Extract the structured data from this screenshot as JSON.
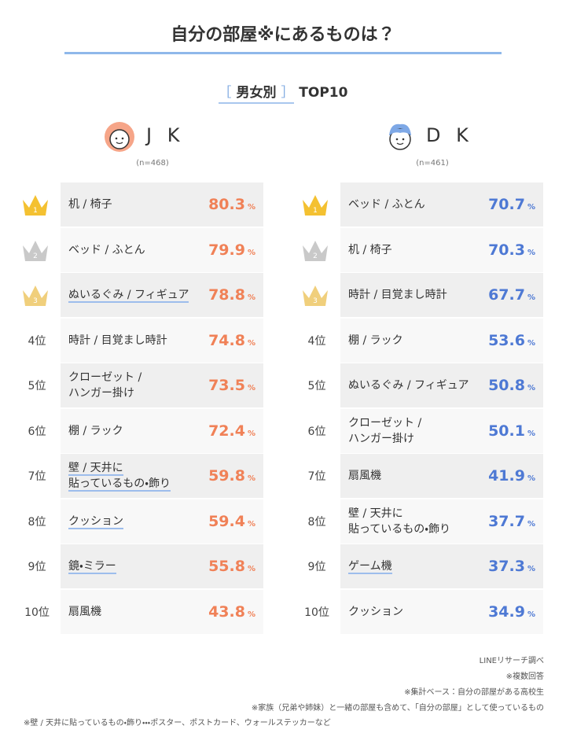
{
  "header": {
    "title": "自分の部屋※にあるものは？",
    "bracket_open": "［",
    "subtitle": "男女別",
    "bracket_close": "］",
    "subtitle_tail": "TOP10"
  },
  "unit": "%",
  "columns": [
    {
      "name": "J K",
      "n": "(n=468)",
      "color": "#f08157",
      "rows": [
        {
          "rank": "1",
          "item": "机 / 椅子",
          "value": "80.3",
          "underline": false
        },
        {
          "rank": "2",
          "item": "ベッド / ふとん",
          "value": "79.9",
          "underline": false
        },
        {
          "rank": "3",
          "item": "ぬいるぐみ / フィギュア",
          "value": "78.8",
          "underline": true
        },
        {
          "rank": "4位",
          "item": "時計 / 目覚まし時計",
          "value": "74.8",
          "underline": false
        },
        {
          "rank": "5位",
          "item": "クローゼット /\nハンガー掛け",
          "value": "73.5",
          "underline": false
        },
        {
          "rank": "6位",
          "item": "棚 / ラック",
          "value": "72.4",
          "underline": false
        },
        {
          "rank": "7位",
          "item": "壁 / 天井に\n貼っているもの・飾り",
          "value": "59.8",
          "underline": true
        },
        {
          "rank": "8位",
          "item": "クッション",
          "value": "59.4",
          "underline": true
        },
        {
          "rank": "9位",
          "item": "鏡・ミラー",
          "value": "55.8",
          "underline": true
        },
        {
          "rank": "10位",
          "item": "扇風機",
          "value": "43.8",
          "underline": false
        }
      ]
    },
    {
      "name": "D K",
      "n": "(n=461)",
      "color": "#4e79d4",
      "rows": [
        {
          "rank": "1",
          "item": "ベッド / ふとん",
          "value": "70.7",
          "underline": false
        },
        {
          "rank": "2",
          "item": "机 / 椅子",
          "value": "70.3",
          "underline": false
        },
        {
          "rank": "3",
          "item": "時計 / 目覚まし時計",
          "value": "67.7",
          "underline": false
        },
        {
          "rank": "4位",
          "item": "棚 / ラック",
          "value": "53.6",
          "underline": false
        },
        {
          "rank": "5位",
          "item": "ぬいるぐみ / フィギュア",
          "value": "50.8",
          "underline": false
        },
        {
          "rank": "6位",
          "item": "クローゼット /\nハンガー掛け",
          "value": "50.1",
          "underline": false
        },
        {
          "rank": "7位",
          "item": "扇風機",
          "value": "41.9",
          "underline": false
        },
        {
          "rank": "8位",
          "item": "壁 / 天井に\n貼っているもの・飾り",
          "value": "37.7",
          "underline": false
        },
        {
          "rank": "9位",
          "item": "ゲーム機",
          "value": "37.3",
          "underline": true
        },
        {
          "rank": "10位",
          "item": "クッション",
          "value": "34.9",
          "underline": false
        }
      ]
    }
  ],
  "notes": [
    "LINEリサーチ調べ",
    "※複数回答",
    "※集計ベース：自分の部屋がある高校生",
    "※家族（兄弟や姉妹）と一緒の部屋も含めて、「自分の部屋」として使っているもの",
    "※壁 / 天井に貼っているもの・飾り・・・ポスター、ポストカード、ウォールステッカーなど"
  ]
}
